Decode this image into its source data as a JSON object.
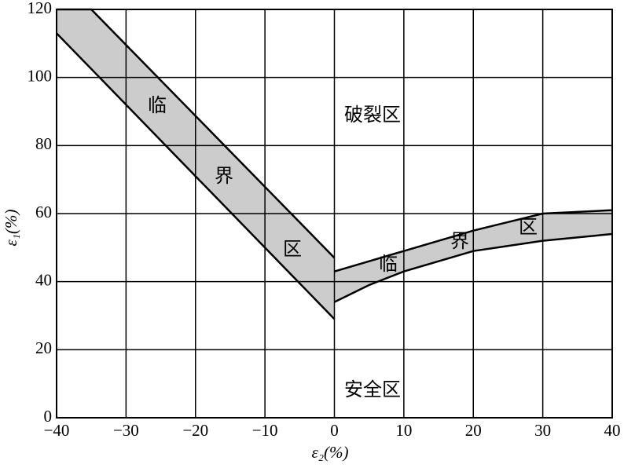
{
  "chart_data": {
    "type": "band",
    "x_label": "ε₂(%)",
    "y_label": "ε₁(%)",
    "xlim": [
      -40,
      40
    ],
    "ylim": [
      0,
      120
    ],
    "xticks": [
      {
        "value": -40,
        "label": "−40"
      },
      {
        "value": -30,
        "label": "−30"
      },
      {
        "value": -20,
        "label": "−20"
      },
      {
        "value": -10,
        "label": "−10"
      },
      0,
      10,
      20,
      30,
      40
    ],
    "yticks": [
      0,
      20,
      40,
      60,
      80,
      100,
      120
    ],
    "grid": true,
    "color": "#cccccc",
    "bands": [
      {
        "upper": {
          "x": [
            -40,
            -35,
            0
          ],
          "values": [
            120,
            120,
            47
          ]
        },
        "lower": {
          "x": [
            -40,
            0
          ],
          "values": [
            113,
            29
          ]
        }
      },
      {
        "upper": {
          "x": [
            0,
            5,
            10,
            20,
            30,
            40
          ],
          "values": [
            43,
            46,
            49,
            55,
            60,
            61
          ]
        },
        "lower": {
          "x": [
            0,
            5,
            10,
            20,
            30,
            40
          ],
          "values": [
            34,
            39,
            43,
            49,
            52,
            54
          ]
        }
      }
    ],
    "annotations": [
      "临",
      "界",
      "区",
      "临",
      "界",
      "区",
      "破裂区",
      "安全区"
    ]
  }
}
